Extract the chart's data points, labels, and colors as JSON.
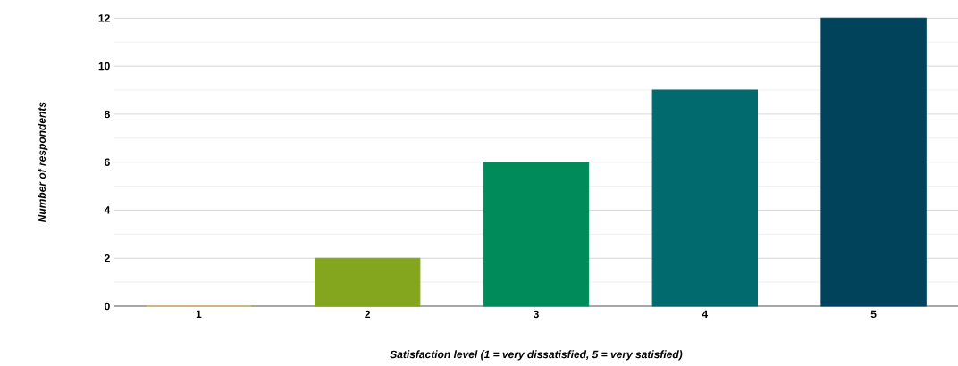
{
  "chart_data": {
    "type": "bar",
    "xlabel": "Satisfaction level (1 = very dissatisfied, 5 = very satisfied)",
    "ylabel": "Number of respondents",
    "categories": [
      "1",
      "2",
      "3",
      "4",
      "5"
    ],
    "values": [
      0,
      2,
      6,
      9,
      12
    ],
    "colors": [
      "#f7c35b",
      "#84a61e",
      "#008c5a",
      "#006a6e",
      "#02435c"
    ],
    "ylim": [
      0,
      12
    ],
    "yticks": [
      0,
      2,
      4,
      6,
      8,
      10,
      12
    ],
    "grid": "y"
  }
}
